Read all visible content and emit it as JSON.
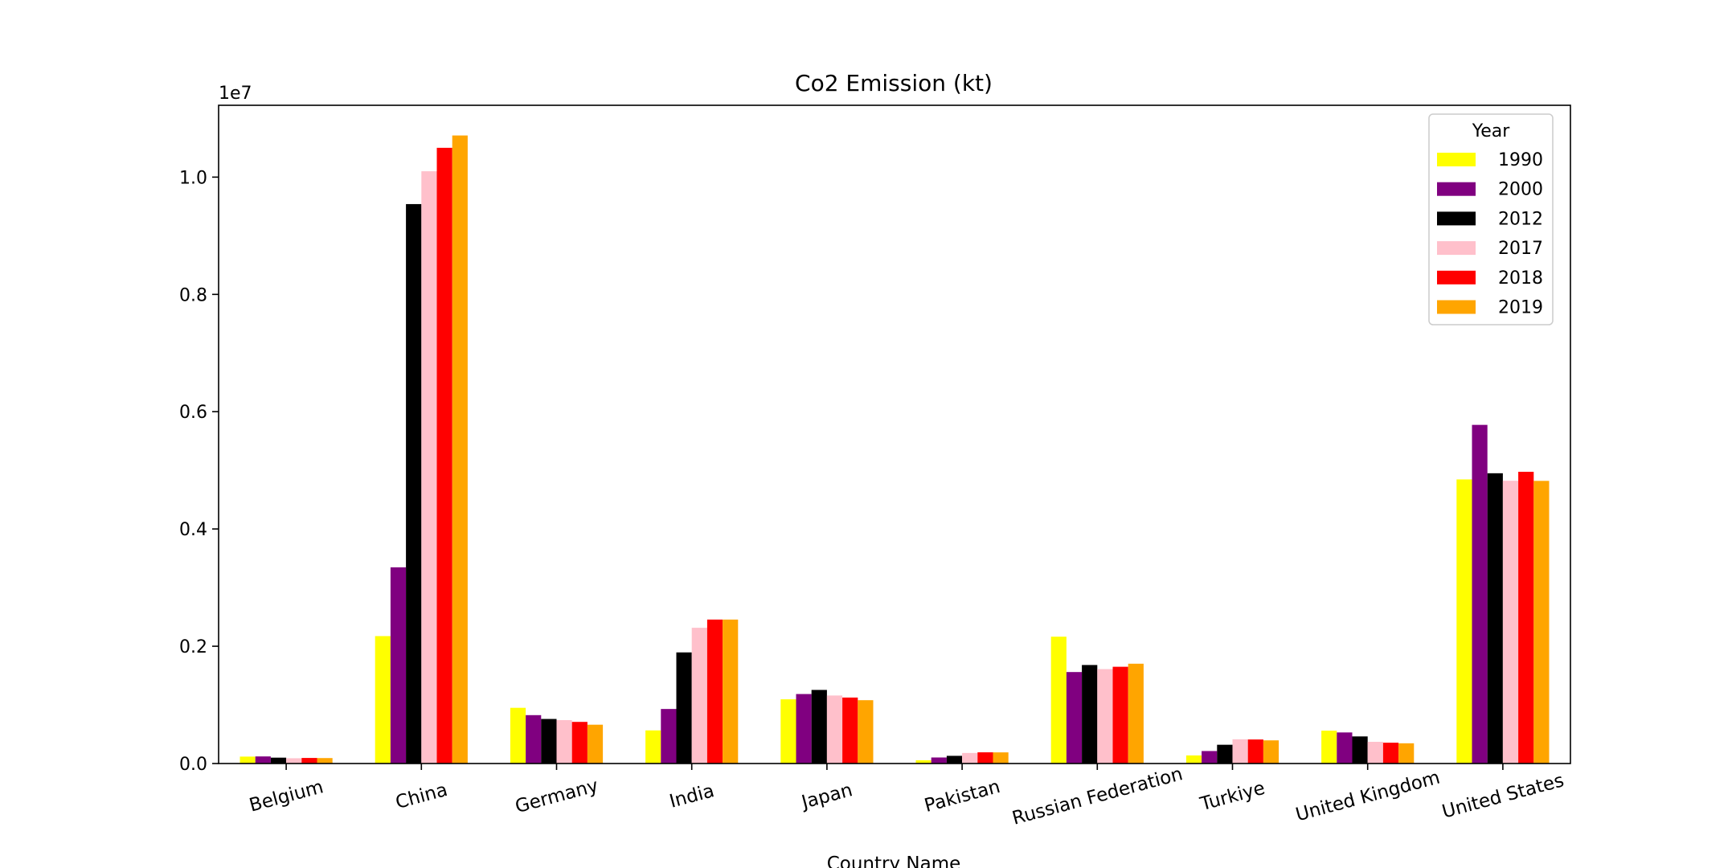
{
  "chart_data": {
    "type": "bar",
    "title": "Co2 Emission (kt)",
    "xlabel": "Country Name",
    "ylabel": "",
    "offset_label": "1e7",
    "ylim": [
      0,
      1.1225
    ],
    "yticks": [
      "0.0",
      "0.2",
      "0.4",
      "0.6",
      "0.8",
      "1.0"
    ],
    "ytick_values": [
      0,
      0.2,
      0.4,
      0.6,
      0.8,
      1.0
    ],
    "categories": [
      "Belgium",
      "China",
      "Germany",
      "India",
      "Japan",
      "Pakistan",
      "Russian Federation",
      "Turkiye",
      "United Kingdom",
      "United States"
    ],
    "legend_title": "Year",
    "legend_position": "top-right",
    "grid": false,
    "series": [
      {
        "name": "1990",
        "color": "#ffff00",
        "values": [
          0.0118,
          0.2173,
          0.095,
          0.0565,
          0.1095,
          0.0056,
          0.2163,
          0.0138,
          0.056,
          0.4845
        ]
      },
      {
        "name": "2000",
        "color": "#800080",
        "values": [
          0.0121,
          0.3346,
          0.0825,
          0.093,
          0.1185,
          0.0103,
          0.156,
          0.0213,
          0.053,
          0.5775
        ]
      },
      {
        "name": "2012",
        "color": "#000000",
        "values": [
          0.01,
          0.954,
          0.076,
          0.1895,
          0.1255,
          0.0131,
          0.168,
          0.032,
          0.0462,
          0.495
        ]
      },
      {
        "name": "2017",
        "color": "#ffc0cb",
        "values": [
          0.009,
          1.01,
          0.074,
          0.2315,
          0.116,
          0.018,
          0.161,
          0.0413,
          0.037,
          0.4822
        ]
      },
      {
        "name": "2018",
        "color": "#ff0000",
        "values": [
          0.0095,
          1.05,
          0.071,
          0.2455,
          0.1125,
          0.0191,
          0.165,
          0.041,
          0.0355,
          0.4975
        ]
      },
      {
        "name": "2019",
        "color": "#ffa500",
        "values": [
          0.0093,
          1.071,
          0.0662,
          0.2455,
          0.108,
          0.019,
          0.1702,
          0.0395,
          0.0345,
          0.482
        ]
      }
    ]
  }
}
